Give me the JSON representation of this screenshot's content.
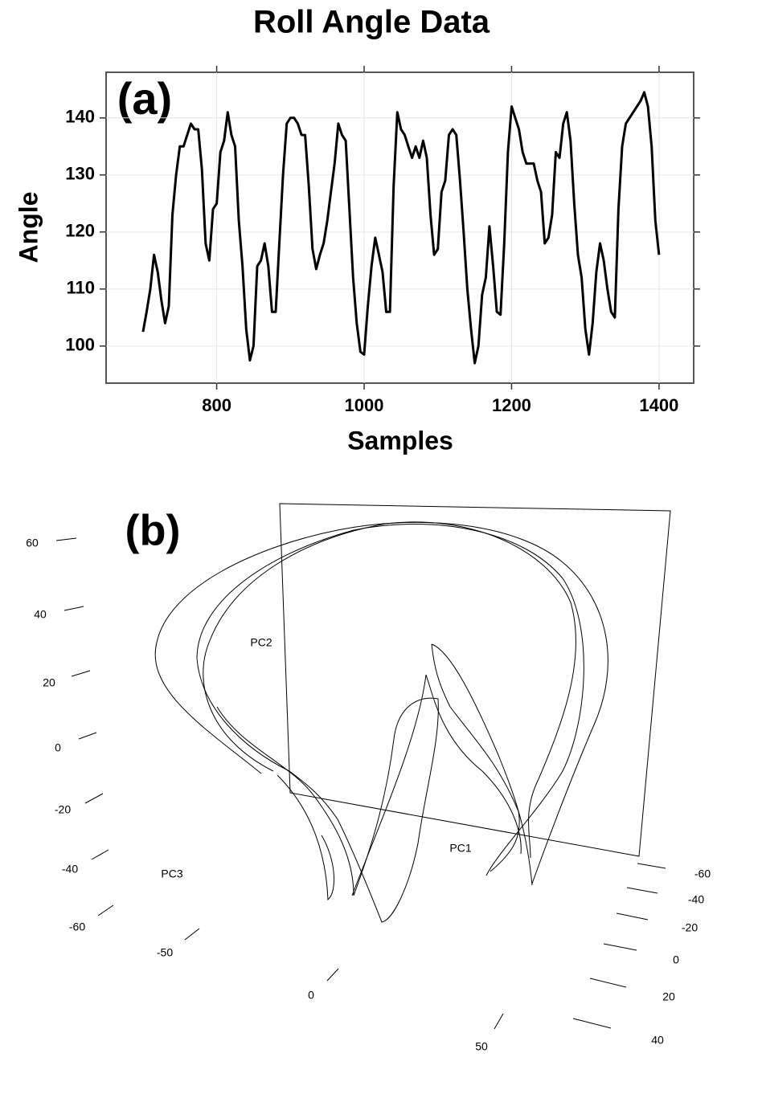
{
  "chart_data": [
    {
      "type": "line",
      "title": "Roll Angle Data",
      "panel_label": "(a)",
      "xlabel": "Samples",
      "ylabel": "Angle",
      "x": [
        700,
        705,
        710,
        715,
        720,
        725,
        730,
        735,
        740,
        745,
        750,
        755,
        760,
        765,
        770,
        775,
        780,
        785,
        790,
        795,
        800,
        805,
        810,
        815,
        820,
        825,
        830,
        835,
        840,
        845,
        850,
        855,
        860,
        865,
        870,
        875,
        880,
        885,
        890,
        895,
        900,
        905,
        910,
        915,
        920,
        925,
        930,
        935,
        940,
        945,
        950,
        955,
        960,
        965,
        970,
        975,
        980,
        985,
        990,
        995,
        1000,
        1005,
        1010,
        1015,
        1020,
        1025,
        1030,
        1035,
        1040,
        1045,
        1050,
        1055,
        1060,
        1065,
        1070,
        1075,
        1080,
        1085,
        1090,
        1095,
        1100,
        1105,
        1110,
        1115,
        1120,
        1125,
        1130,
        1135,
        1140,
        1145,
        1150,
        1155,
        1160,
        1165,
        1170,
        1175,
        1180,
        1185,
        1190,
        1195,
        1200,
        1205,
        1210,
        1215,
        1220,
        1225,
        1230,
        1235,
        1240,
        1245,
        1250,
        1255,
        1260,
        1265,
        1270,
        1275,
        1280,
        1285,
        1290,
        1295,
        1300,
        1305,
        1310,
        1315,
        1320,
        1325,
        1330,
        1335,
        1340,
        1345,
        1350,
        1355,
        1360,
        1365,
        1370,
        1375,
        1380,
        1385,
        1390,
        1395,
        1400
      ],
      "values": [
        102.5,
        106,
        110,
        116,
        113,
        108,
        104,
        107,
        123,
        130,
        135,
        135,
        137,
        139,
        138,
        138,
        131,
        118,
        115,
        124,
        125,
        134,
        136,
        141,
        137,
        135,
        122,
        114,
        103,
        97.5,
        100,
        114,
        115,
        118,
        114,
        106,
        106,
        118,
        130,
        139,
        140,
        140,
        139,
        137,
        137,
        128,
        117,
        113.5,
        116,
        118,
        122,
        127,
        132,
        139,
        137,
        136,
        124,
        112,
        104,
        99,
        98.5,
        107,
        114,
        119,
        116,
        113,
        106,
        106,
        128,
        141,
        138,
        137,
        135,
        133,
        135,
        133,
        136,
        133,
        123,
        116,
        117,
        127,
        129,
        137,
        138,
        137,
        129,
        120,
        110,
        103,
        97,
        100,
        109,
        112,
        121,
        114,
        106,
        105.5,
        118,
        134,
        142,
        140,
        138,
        134,
        132,
        132,
        132,
        129,
        127,
        118,
        119,
        123,
        134,
        133,
        139,
        141,
        136,
        125,
        116,
        112,
        103,
        98.5,
        104,
        113,
        118,
        115,
        110,
        106,
        105,
        124,
        135,
        139,
        140,
        141,
        142,
        143,
        144.5,
        142,
        135,
        122,
        116
      ],
      "color": "#000000",
      "xlim": [
        650,
        1447
      ],
      "ylim": [
        93.5,
        148
      ],
      "xticks": [
        800,
        1000,
        1200,
        1400
      ],
      "yticks": [
        100,
        110,
        120,
        130,
        140
      ],
      "grid": true
    },
    {
      "type": "3d-line",
      "panel_label": "(b)",
      "xlabel": "PC1",
      "ylabel": "PC2",
      "zlabel": "PC3",
      "xticks": [
        -60,
        -40,
        -20,
        0,
        20,
        40
      ],
      "yticks": [
        60,
        40,
        20,
        0,
        -20,
        -40,
        -60
      ],
      "zticks": [
        -50,
        0,
        50
      ],
      "color": "#000000"
    }
  ]
}
